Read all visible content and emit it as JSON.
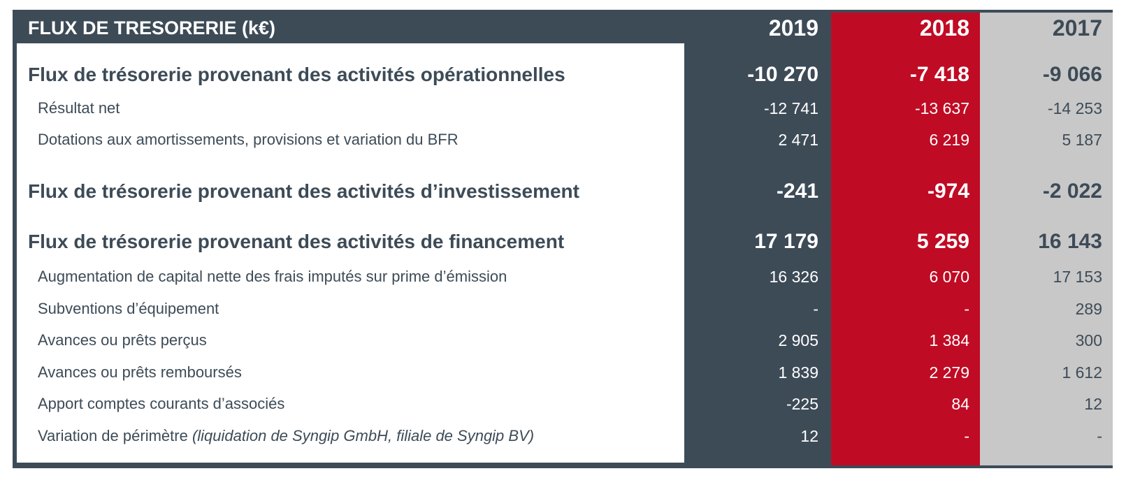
{
  "header": {
    "title": "FLUX DE TRESORERIE (k€)",
    "years": [
      "2019",
      "2018",
      "2017"
    ]
  },
  "rows": [
    {
      "label": "Flux de trésorerie provenant des activités opérationnelles",
      "values": [
        "-10 270",
        "-7 418",
        "-9 066"
      ]
    },
    {
      "label": "Résultat net",
      "values": [
        "-12 741",
        "-13 637",
        "-14 253"
      ]
    },
    {
      "label": "Dotations aux amortissements, provisions et variation du BFR",
      "values": [
        "2 471",
        "6 219",
        "5 187"
      ]
    },
    {
      "label": "Flux de trésorerie provenant des activités d’investissement",
      "values": [
        "-241",
        "-974",
        "-2 022"
      ]
    },
    {
      "label": "Flux de trésorerie provenant des activités de financement",
      "values": [
        "17 179",
        "5 259",
        "16 143"
      ]
    },
    {
      "label": "Augmentation de capital nette des frais imputés sur prime d’émission",
      "values": [
        "16 326",
        "6 070",
        "17 153"
      ]
    },
    {
      "label": "Subventions d’équipement",
      "values": [
        "-",
        "-",
        "289"
      ]
    },
    {
      "label": "Avances ou prêts perçus",
      "values": [
        "2 905",
        "1 384",
        "300"
      ]
    },
    {
      "label": "Avances ou prêts remboursés",
      "values": [
        "1 839",
        "2 279",
        "1 612"
      ]
    },
    {
      "label": "Apport comptes courants d’associés",
      "values": [
        "-225",
        "84",
        "12"
      ]
    },
    {
      "label": "Variation de périmètre ",
      "note": "(liquidation de Syngip GmbH, filiale de Syngip BV)",
      "values": [
        "12",
        "-",
        "-"
      ]
    }
  ],
  "colors": {
    "frame": "#3d4b57",
    "col_2018": "#c00b24",
    "col_2017": "#c8c8c8"
  }
}
